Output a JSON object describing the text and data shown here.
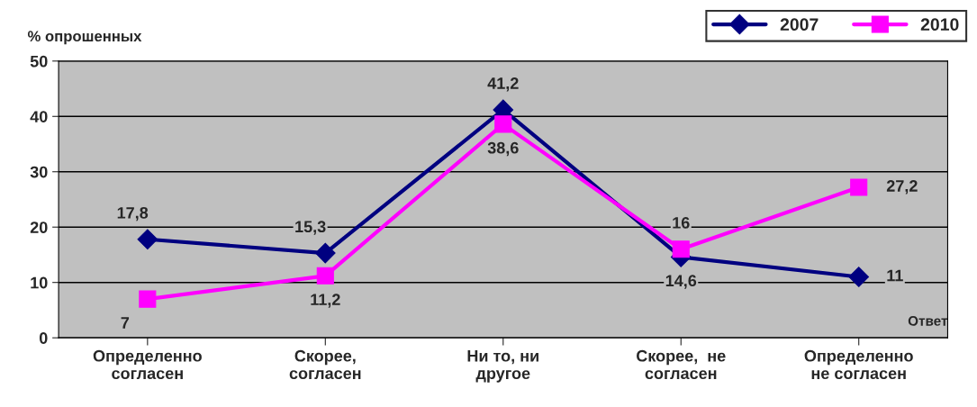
{
  "chart_data": {
    "type": "line",
    "ylabel": "% опрошенных",
    "xlabel": "Ответ",
    "categories": [
      "Определенно\nсогласен",
      "Скорее,\nсогласен",
      "Ни то, ни\nдругое",
      "Скорее,  не\nсогласен",
      "Определенно\nне согласен"
    ],
    "series": [
      {
        "name": "2007",
        "color": "#000080",
        "marker": "diamond",
        "values": [
          17.8,
          15.3,
          41.2,
          14.6,
          11
        ],
        "value_labels": [
          "17,8",
          "15,3",
          "41,2",
          "14,6",
          "11"
        ]
      },
      {
        "name": "2010",
        "color": "#ff00ff",
        "marker": "square",
        "values": [
          7,
          11.2,
          38.6,
          16,
          27.2
        ],
        "value_labels": [
          "7",
          "11,2",
          "38,6",
          "16",
          "27,2"
        ]
      }
    ],
    "ylim": [
      0,
      50
    ],
    "yticks": [
      0,
      10,
      20,
      30,
      40,
      50
    ],
    "grid": "y",
    "legend": "top right",
    "line_style": "solid"
  }
}
